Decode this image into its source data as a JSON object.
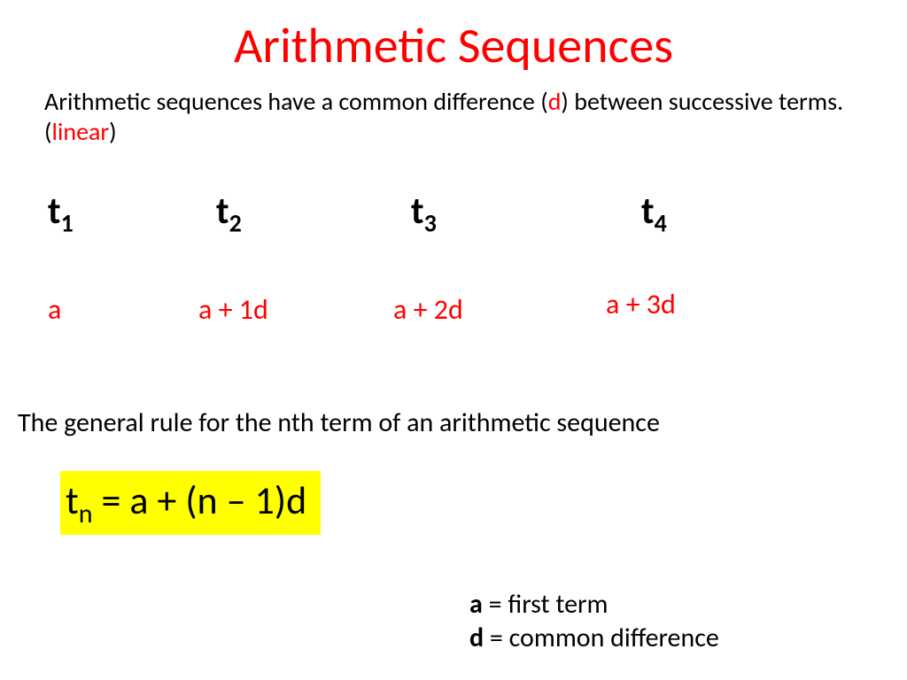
{
  "title": "Arithmetic Sequences",
  "intro": {
    "part1": "Arithmetic sequences have a common difference (",
    "d": "d",
    "part2": ") between successive terms.  (",
    "linear": "linear",
    "part3": ")"
  },
  "terms": {
    "t1_base": "t",
    "t1_sub": "1",
    "t2_base": "t",
    "t2_sub": "2",
    "t3_base": "t",
    "t3_sub": "3",
    "t4_base": "t",
    "t4_sub": "4"
  },
  "values": {
    "v1": "a",
    "v2": "a + 1d",
    "v3": "a + 2d",
    "v4": "a + 3d"
  },
  "rule_text": "The general rule for the nth term of an arithmetic sequence",
  "formula": {
    "base": "t",
    "sub": "n",
    "rest": " = a + (n – 1)d"
  },
  "legend": {
    "a_sym": "a",
    "a_desc": " = first term",
    "d_sym": "d",
    "d_desc": " = common difference"
  },
  "colors": {
    "title": "#ff0000",
    "highlight": "#ffff00",
    "text": "#000000",
    "accent": "#ff0000",
    "background": "#ffffff"
  },
  "typography": {
    "title_fontsize": 56,
    "body_fontsize": 28,
    "term_fontsize": 42,
    "formula_fontsize": 44,
    "legend_fontsize": 30
  }
}
